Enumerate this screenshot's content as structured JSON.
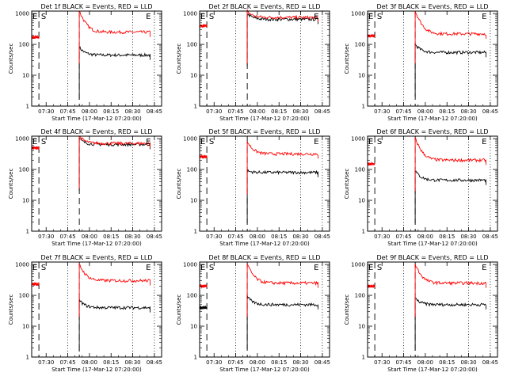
{
  "figure": {
    "event_color": "#000000",
    "lld_color": "#ff0000",
    "xtick_labels": [
      "07:30",
      "07:45",
      "08:00",
      "08:15",
      "08:30",
      "08:45"
    ],
    "ytick_labels": [
      "1",
      "10",
      "100",
      "1000"
    ],
    "xlabel": "Start Time (17-Mar-12 07:20:00)",
    "ylabel": "Counts/sec",
    "region_labels": [
      "E",
      "S",
      "E"
    ]
  },
  "chart_data": [
    {
      "type": "line",
      "title": "Det 1f BLACK = Events, RED = LLD",
      "xlabel": "Start Time (17-Mar-12 07:20:00)",
      "ylabel": "Counts/sec",
      "ylim": [
        1,
        1200
      ],
      "xlim": [
        "07:20",
        "08:50"
      ],
      "yscale": "log",
      "series": [
        {
          "name": "Events",
          "color": "#000000",
          "segments": [
            {
              "from": "07:53",
              "to": "08:42",
              "start": 80,
              "level": 45
            }
          ]
        },
        {
          "name": "LLD",
          "color": "#ff0000",
          "segments": [
            {
              "from": "07:20",
              "to": "07:25",
              "level": 170
            },
            {
              "from": "07:53",
              "to": "08:42",
              "start": 1200,
              "level": 250
            }
          ]
        }
      ]
    },
    {
      "type": "line",
      "title": "Det 2f BLACK = Events, RED = LLD",
      "xlabel": "Start Time (17-Mar-12 07:20:00)",
      "ylabel": "Counts/sec",
      "ylim": [
        1,
        1200
      ],
      "xlim": [
        "07:20",
        "08:50"
      ],
      "yscale": "log",
      "series": [
        {
          "name": "Events",
          "color": "#000000",
          "segments": [
            {
              "from": "07:53",
              "to": "08:42",
              "start": 1000,
              "level": 650
            }
          ]
        },
        {
          "name": "LLD",
          "color": "#ff0000",
          "segments": [
            {
              "from": "07:20",
              "to": "07:25",
              "level": 400
            },
            {
              "from": "07:53",
              "to": "08:42",
              "start": 1200,
              "level": 750
            }
          ]
        }
      ]
    },
    {
      "type": "line",
      "title": "Det 3f BLACK = Events, RED = LLD",
      "xlabel": "Start Time (17-Mar-12 07:20:00)",
      "ylabel": "Counts/sec",
      "ylim": [
        1,
        1200
      ],
      "xlim": [
        "07:20",
        "08:50"
      ],
      "yscale": "log",
      "series": [
        {
          "name": "Events",
          "color": "#000000",
          "segments": [
            {
              "from": "07:53",
              "to": "08:42",
              "start": 100,
              "level": 55
            }
          ]
        },
        {
          "name": "LLD",
          "color": "#ff0000",
          "segments": [
            {
              "from": "07:20",
              "to": "07:25",
              "level": 190
            },
            {
              "from": "07:53",
              "to": "08:42",
              "start": 1200,
              "level": 220
            }
          ]
        }
      ]
    },
    {
      "type": "line",
      "title": "Det 4f BLACK = Events, RED = LLD",
      "xlabel": "Start Time (17-Mar-12 07:20:00)",
      "ylabel": "Counts/sec",
      "ylim": [
        1,
        1200
      ],
      "xlim": [
        "07:20",
        "08:50"
      ],
      "yscale": "log",
      "series": [
        {
          "name": "Events",
          "color": "#000000",
          "segments": [
            {
              "from": "07:53",
              "to": "08:42",
              "start": 1000,
              "level": 650
            }
          ]
        },
        {
          "name": "LLD",
          "color": "#ff0000",
          "segments": [
            {
              "from": "07:20",
              "to": "07:25",
              "level": 500
            },
            {
              "from": "07:53",
              "to": "08:42",
              "start": 1200,
              "level": 700
            }
          ]
        }
      ]
    },
    {
      "type": "line",
      "title": "Det 5f BLACK = Events, RED = LLD",
      "xlabel": "Start Time (17-Mar-12 07:20:00)",
      "ylabel": "Counts/sec",
      "ylim": [
        1,
        1200
      ],
      "xlim": [
        "07:20",
        "08:50"
      ],
      "yscale": "log",
      "series": [
        {
          "name": "Events",
          "color": "#000000",
          "segments": [
            {
              "from": "07:53",
              "to": "08:42",
              "start": 90,
              "level": 80
            }
          ]
        },
        {
          "name": "LLD",
          "color": "#ff0000",
          "segments": [
            {
              "from": "07:20",
              "to": "07:25",
              "level": 260
            },
            {
              "from": "07:53",
              "to": "08:42",
              "start": 800,
              "level": 320
            }
          ]
        }
      ]
    },
    {
      "type": "line",
      "title": "Det 6f BLACK = Events, RED = LLD",
      "xlabel": "Start Time (17-Mar-12 07:20:00)",
      "ylabel": "Counts/sec",
      "ylim": [
        1,
        1200
      ],
      "xlim": [
        "07:20",
        "08:50"
      ],
      "yscale": "log",
      "series": [
        {
          "name": "Events",
          "color": "#000000",
          "segments": [
            {
              "from": "07:53",
              "to": "08:42",
              "start": 90,
              "level": 45
            }
          ]
        },
        {
          "name": "LLD",
          "color": "#ff0000",
          "segments": [
            {
              "from": "07:20",
              "to": "07:25",
              "level": 150
            },
            {
              "from": "07:53",
              "to": "08:42",
              "start": 1000,
              "level": 200
            }
          ]
        }
      ]
    },
    {
      "type": "line",
      "title": "Det 7f BLACK = Events, RED = LLD",
      "xlabel": "Start Time (17-Mar-12 07:20:00)",
      "ylabel": "Counts/sec",
      "ylim": [
        1,
        1200
      ],
      "xlim": [
        "07:20",
        "08:50"
      ],
      "yscale": "log",
      "series": [
        {
          "name": "Events",
          "color": "#000000",
          "segments": [
            {
              "from": "07:53",
              "to": "08:42",
              "start": 70,
              "level": 40
            }
          ]
        },
        {
          "name": "LLD",
          "color": "#ff0000",
          "segments": [
            {
              "from": "07:20",
              "to": "07:25",
              "level": 230
            },
            {
              "from": "07:53",
              "to": "08:42",
              "start": 1000,
              "level": 300
            }
          ]
        }
      ]
    },
    {
      "type": "line",
      "title": "Det 8f BLACK = Events, RED = LLD",
      "xlabel": "Start Time (17-Mar-12 07:20:00)",
      "ylabel": "Counts/sec",
      "ylim": [
        1,
        1200
      ],
      "xlim": [
        "07:20",
        "08:50"
      ],
      "yscale": "log",
      "series": [
        {
          "name": "Events",
          "color": "#000000",
          "segments": [
            {
              "from": "07:20",
              "to": "07:25",
              "level": 40
            },
            {
              "from": "07:53",
              "to": "08:42",
              "start": 90,
              "level": 50
            }
          ]
        },
        {
          "name": "LLD",
          "color": "#ff0000",
          "segments": [
            {
              "from": "07:20",
              "to": "07:25",
              "level": 200
            },
            {
              "from": "07:53",
              "to": "08:42",
              "start": 1000,
              "level": 250
            }
          ]
        }
      ]
    },
    {
      "type": "line",
      "title": "Det 9f BLACK = Events, RED = LLD",
      "xlabel": "Start Time (17-Mar-12 07:20:00)",
      "ylabel": "Counts/sec",
      "ylim": [
        1,
        1200
      ],
      "xlim": [
        "07:20",
        "08:50"
      ],
      "yscale": "log",
      "series": [
        {
          "name": "Events",
          "color": "#000000",
          "segments": [
            {
              "from": "07:53",
              "to": "08:42",
              "start": 80,
              "level": 50
            }
          ]
        },
        {
          "name": "LLD",
          "color": "#ff0000",
          "segments": [
            {
              "from": "07:20",
              "to": "07:25",
              "level": 200
            },
            {
              "from": "07:53",
              "to": "08:42",
              "start": 1000,
              "level": 250
            }
          ]
        }
      ]
    }
  ]
}
